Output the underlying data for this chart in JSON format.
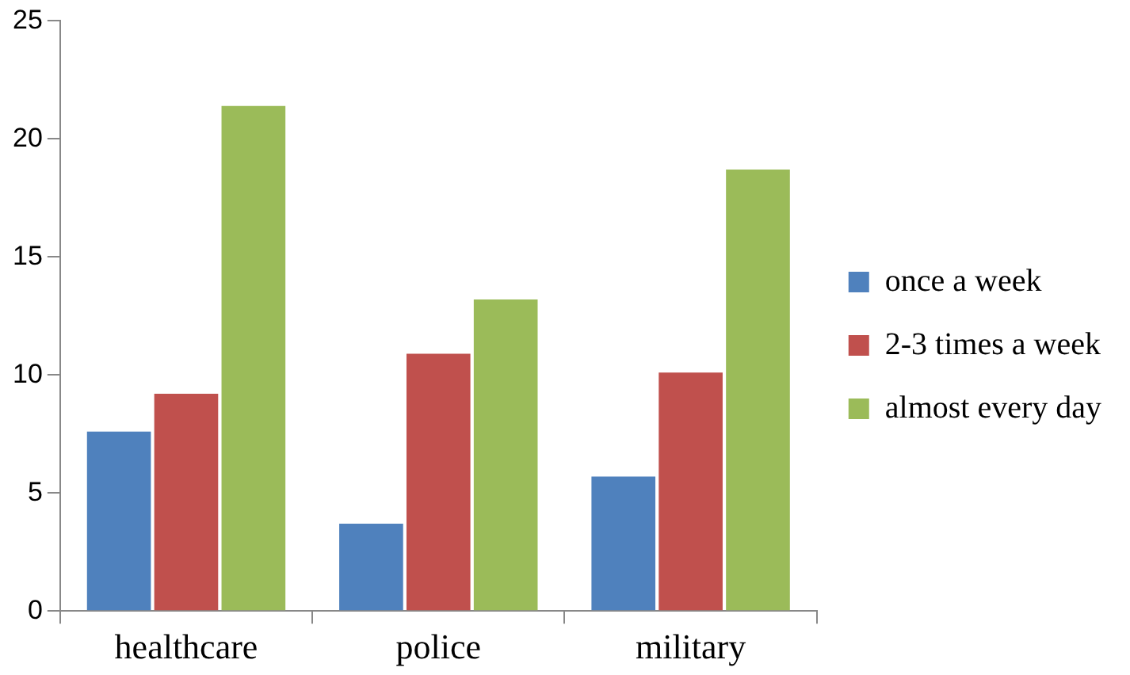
{
  "chart_data": {
    "type": "bar",
    "categories": [
      "healthcare",
      "police",
      "military"
    ],
    "series": [
      {
        "name": "once a week",
        "color": "#4f81bd",
        "values": [
          7.6,
          3.7,
          5.7
        ]
      },
      {
        "name": "2-3 times a week",
        "color": "#c0504d",
        "values": [
          9.2,
          10.9,
          10.1
        ]
      },
      {
        "name": "almost every day",
        "color": "#9bbb59",
        "values": [
          21.4,
          13.2,
          18.7
        ]
      }
    ],
    "ylim": [
      0,
      25
    ],
    "yticks": [
      0,
      5,
      10,
      15,
      20,
      25
    ],
    "grid": false,
    "legend": "right"
  }
}
